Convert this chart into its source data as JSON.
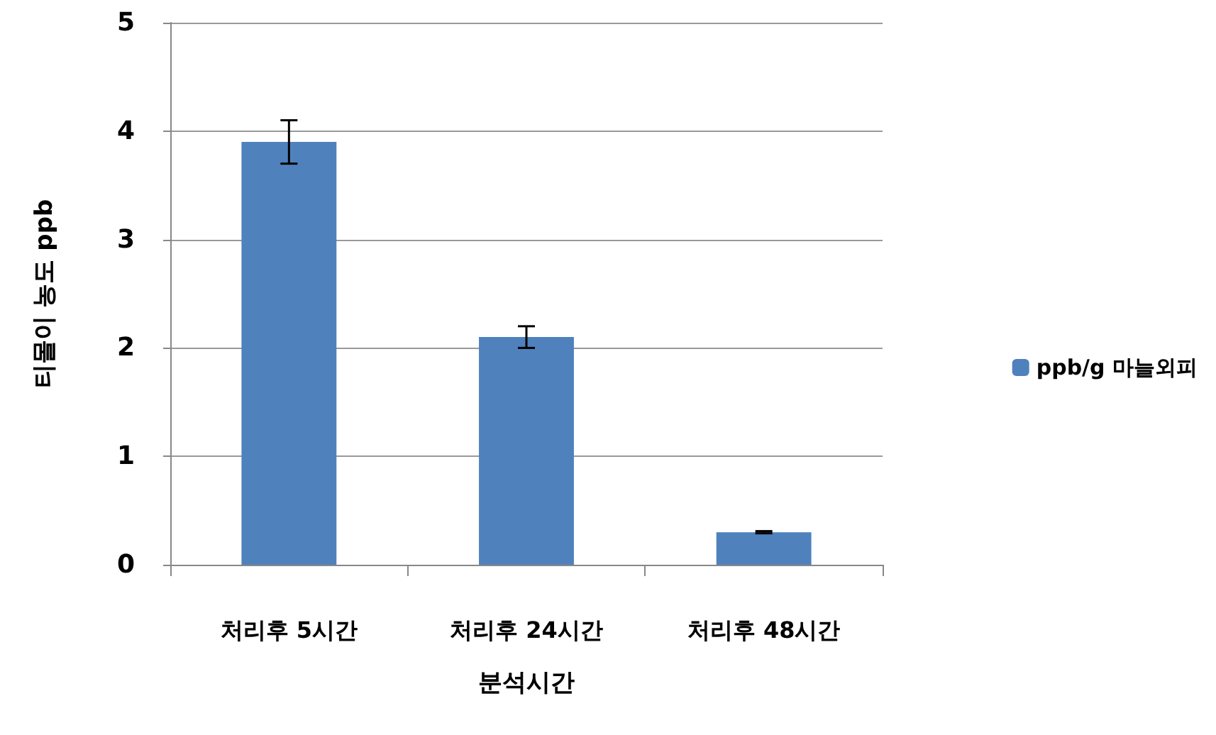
{
  "chart_data": {
    "type": "bar",
    "xlabel": "분석시간",
    "ylabel": "티몰이 농도 ppb",
    "categories": [
      "처리후 5시간",
      "처리후 24시간",
      "처리후 48시간"
    ],
    "series": [
      {
        "name": "ppb/g 마늘외피",
        "color": "#4f81bd",
        "values": [
          3.9,
          2.1,
          0.3
        ],
        "errors": [
          0.2,
          0.1,
          0.01
        ]
      }
    ],
    "ylim": [
      0,
      5
    ],
    "yticks": [
      0,
      1,
      2,
      3,
      4,
      5
    ],
    "grid": "y",
    "legend": "right"
  }
}
